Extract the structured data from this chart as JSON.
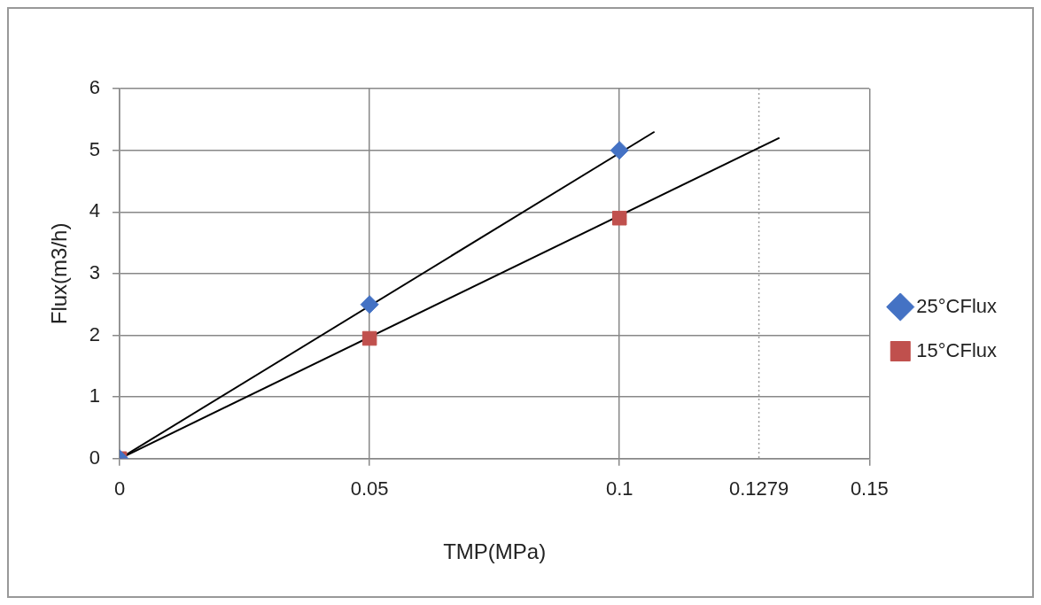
{
  "chart_data": {
    "type": "scatter",
    "xlabel": "TMP(MPa)",
    "ylabel": "Flux(m3/h)",
    "xlim": [
      0,
      0.15
    ],
    "xticks": [
      0,
      0.05,
      0.1,
      0.1279,
      0.15
    ],
    "ylim": [
      0,
      6
    ],
    "yticks": [
      0,
      1,
      2,
      3,
      4,
      5,
      6
    ],
    "grid": true,
    "legend": "right",
    "ref_lines": [
      {
        "axis": "x",
        "value": 0.1279,
        "color": "#a0a0a0",
        "line_style": "dotted"
      }
    ],
    "series": [
      {
        "name": "25°CFlux",
        "marker": "diamond",
        "color": "#4472c4",
        "x": [
          0,
          0.05,
          0.1
        ],
        "values": [
          0,
          2.5,
          5
        ]
      },
      {
        "name": "15°CFlux",
        "marker": "square",
        "color": "#c0504d",
        "x": [
          0,
          0.05,
          0.1
        ],
        "values": [
          0,
          1.95,
          3.9
        ]
      },
      {
        "type": "line",
        "marker": "none",
        "color": "#000000",
        "x": [
          0,
          0.107
        ],
        "values": [
          0,
          5.3
        ]
      },
      {
        "type": "line",
        "marker": "none",
        "color": "#000000",
        "x": [
          0,
          0.132
        ],
        "values": [
          0,
          5.2
        ]
      }
    ]
  }
}
